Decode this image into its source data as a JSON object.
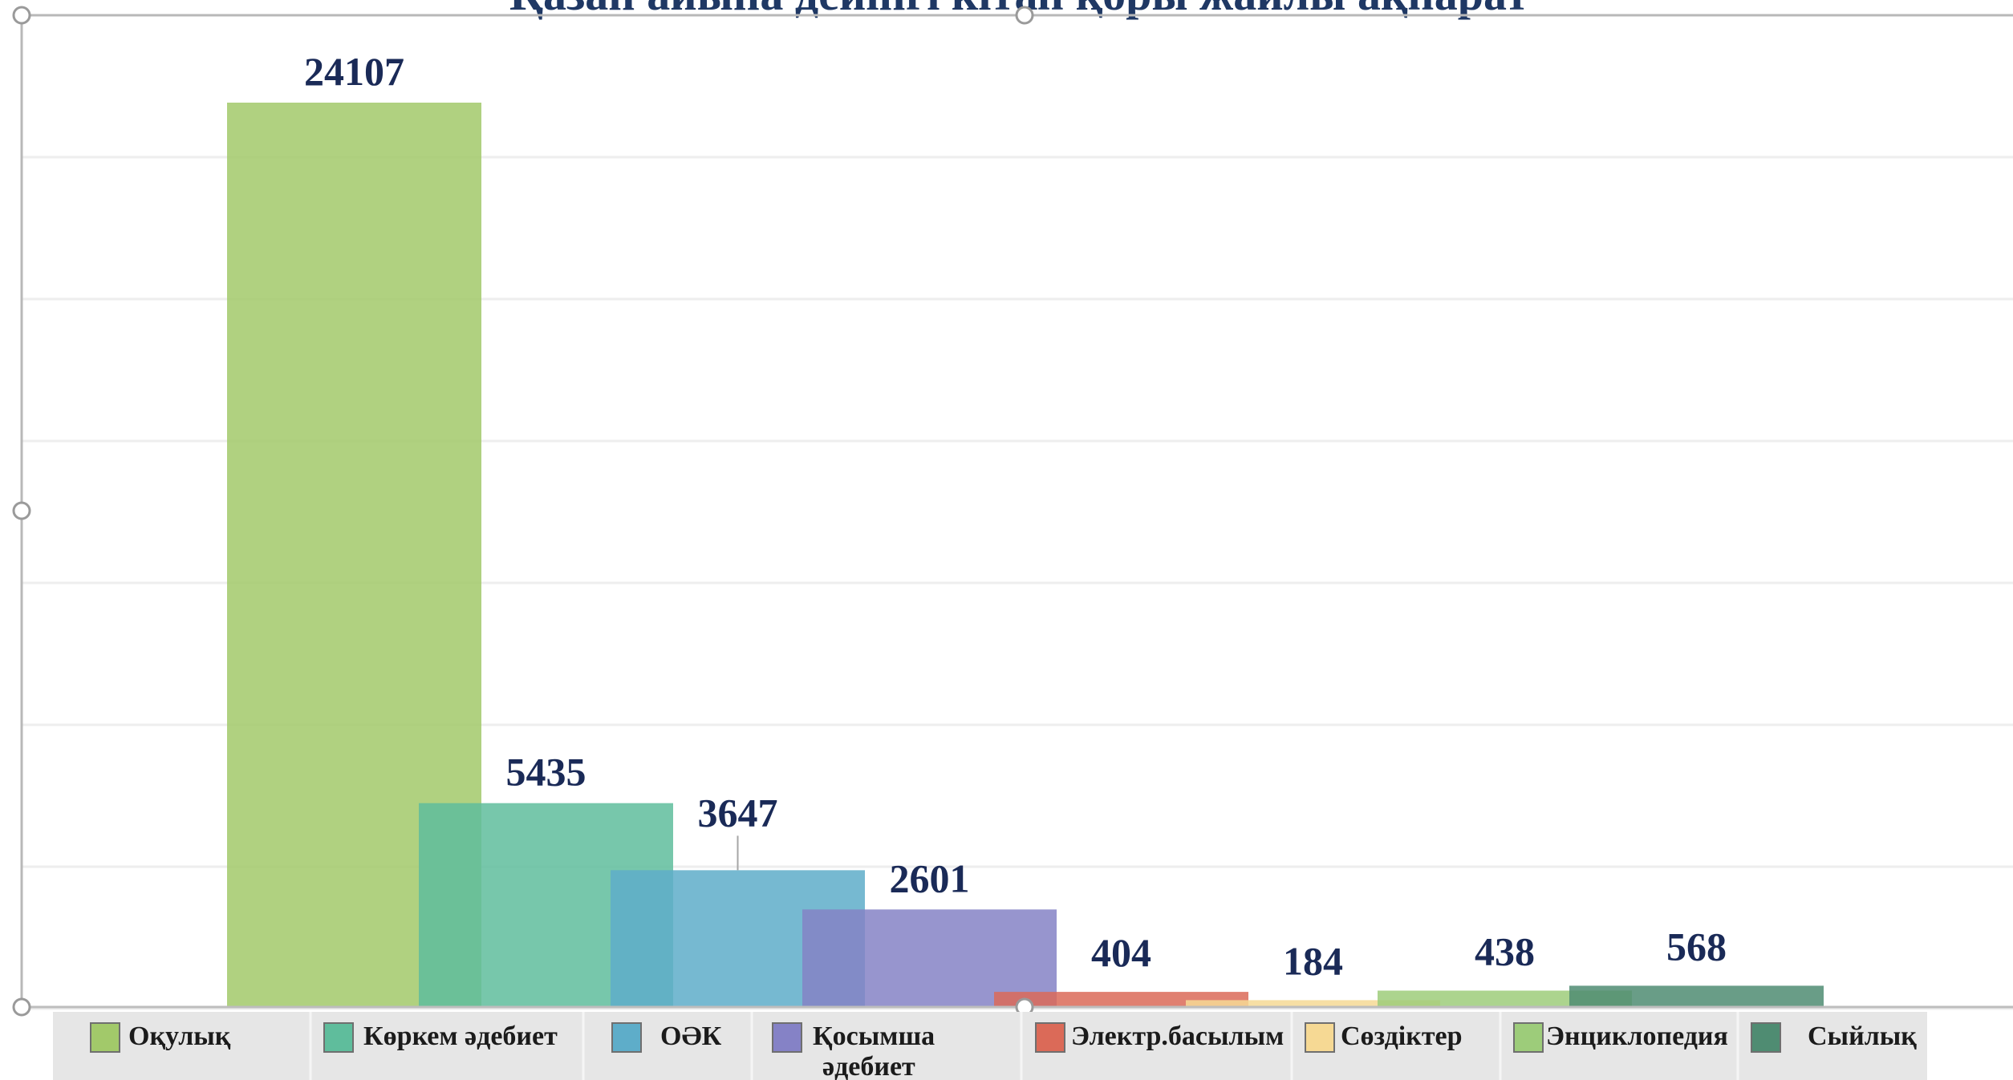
{
  "chart_data": {
    "type": "bar",
    "title": "Қазан айына дейінгі кітап қоры жайлы ақпарат",
    "categories": [
      "Оқулық",
      "Көркем әдебиет",
      "ОӘК",
      "Қосымша әдебиет",
      "Электр.басылым",
      "Сөздіктер",
      "Энциклопедия",
      "Сыйлық"
    ],
    "values": [
      24107,
      5435,
      3647,
      2601,
      404,
      184,
      438,
      568
    ],
    "legend": [
      {
        "label": "Оқулық"
      },
      {
        "label": "Көркем әдебиет"
      },
      {
        "label": "ОӘК"
      },
      {
        "label": "Қосымша",
        "label2": "әдебиет"
      },
      {
        "label": "Электр.басылым"
      },
      {
        "label": "Сөздіктер"
      },
      {
        "label": "Энциклопедия"
      },
      {
        "label": "Сыйлық"
      }
    ],
    "colors": [
      "#a2c96a",
      "#5fbd9c",
      "#5eadc9",
      "#8582c6",
      "#db6a58",
      "#f6d994",
      "#9dcc7a",
      "#4f8c72"
    ],
    "ylim": [
      0,
      24107
    ],
    "grid": true,
    "legend_position": "bottom"
  }
}
